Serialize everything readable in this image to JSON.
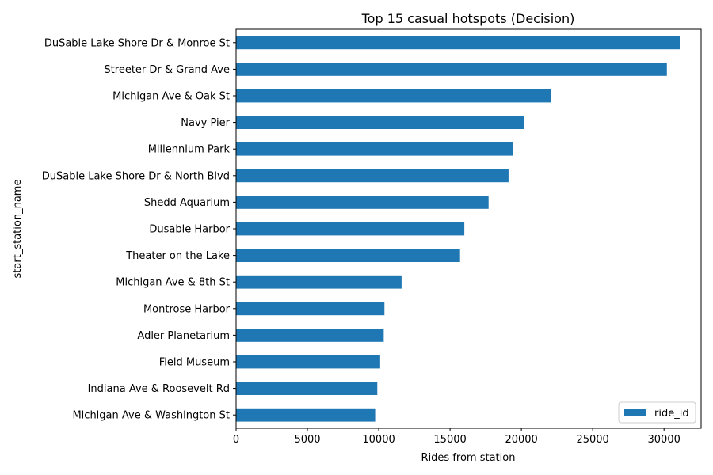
{
  "chart_data": {
    "type": "bar",
    "orientation": "horizontal",
    "title": "Top 15 casual hotspots (Decision)",
    "xlabel": "Rides from station",
    "ylabel": "start_station_name",
    "xlim": [
      0,
      32600
    ],
    "xticks": [
      0,
      5000,
      10000,
      15000,
      20000,
      25000,
      30000
    ],
    "grid": false,
    "legend_position": "bottom-right",
    "categories": [
      "DuSable Lake Shore Dr & Monroe St",
      "Streeter Dr & Grand Ave",
      "Michigan Ave & Oak St",
      "Navy Pier",
      "Millennium Park",
      "DuSable Lake Shore Dr & North Blvd",
      "Shedd Aquarium",
      "Dusable Harbor",
      "Theater on the Lake",
      "Michigan Ave & 8th St",
      "Montrose Harbor",
      "Adler Planetarium",
      "Field Museum",
      "Indiana Ave & Roosevelt Rd",
      "Michigan Ave & Washington St"
    ],
    "series": [
      {
        "name": "ride_id",
        "color": "#1f77b4",
        "values": [
          31100,
          30200,
          22100,
          20200,
          19400,
          19100,
          17700,
          16000,
          15700,
          11600,
          10400,
          10350,
          10100,
          9900,
          9750
        ]
      }
    ]
  }
}
